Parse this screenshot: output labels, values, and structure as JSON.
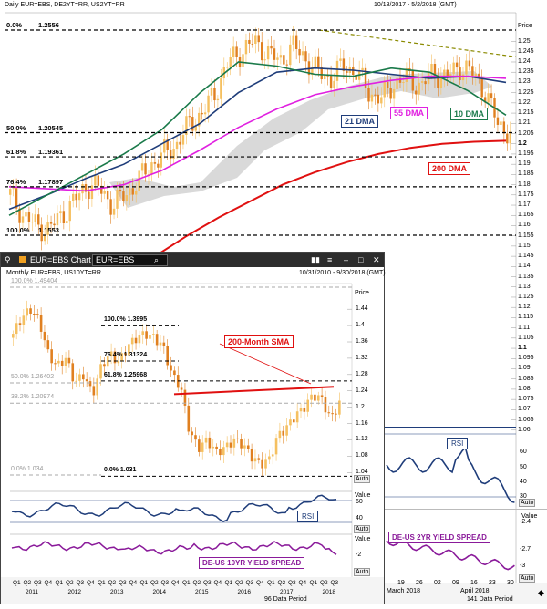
{
  "daily": {
    "header": "Daily EUR=EBS, DE2YT=RR, US2YT=RR",
    "range": "10/18/2017 - 5/2/2018 (GMT)",
    "price_label": "Price",
    "price_ticks": [
      "1.25",
      "1.245",
      "1.24",
      "1.235",
      "1.23",
      "1.225",
      "1.22",
      "1.215",
      "1.21",
      "1.205",
      "1.2",
      "1.195",
      "1.19",
      "1.185",
      "1.18",
      "1.175",
      "1.17",
      "1.165",
      "1.16",
      "1.155",
      "1.15",
      "1.145",
      "1.14",
      "1.135",
      "1.13",
      "1.125",
      "1.12",
      "1.115",
      "1.11",
      "1.105",
      "1.1",
      "1.095",
      "1.09",
      "1.085",
      "1.08",
      "1.075",
      "1.07",
      "1.065",
      "1.06"
    ],
    "fib_levels": [
      {
        "pct": "0.0%",
        "value": "1.2556"
      },
      {
        "pct": "50.0%",
        "value": "1.20545"
      },
      {
        "pct": "61.8%",
        "value": "1.19361"
      },
      {
        "pct": "76.4%",
        "value": "1.17897"
      },
      {
        "pct": "100.0%",
        "value": "1.1553"
      }
    ],
    "labels": {
      "dma21": "21 DMA",
      "dma55": "55 DMA",
      "dma10": "10 DMA",
      "dma200": "200 DMA"
    },
    "rsi_label": "RSI",
    "rsi_ticks": [
      "60",
      "50",
      "40",
      "30"
    ],
    "spread_label": "DE-US 2YR YIELD SPREAD",
    "spread_ticks": [
      "-2.4",
      "-2.7",
      "-3"
    ],
    "auto": "Auto",
    "value": "Value",
    "x_labels": [
      "19",
      "26",
      "02",
      "09",
      "16",
      "23",
      "30"
    ],
    "x_months": [
      "March 2018",
      "April 2018"
    ],
    "data_period": "141 Data Period"
  },
  "monthly_window": {
    "title": "EUR=EBS Chart",
    "ric": "EUR=EBS",
    "header": "Monthly EUR=EBS, US10YT=RR",
    "range": "10/31/2010 - 9/30/2018 (GMT)",
    "price_label": "Price",
    "price_ticks": [
      "1.44",
      "1.4",
      "1.36",
      "1.32",
      "1.28",
      "1.24",
      "1.2",
      "1.16",
      "1.12",
      "1.08",
      "1.04"
    ],
    "fib_levels": [
      {
        "pct": "100.0%",
        "value": "1.49404"
      },
      {
        "pct": "100.0%",
        "value": "1.3995"
      },
      {
        "pct": "76.4%",
        "value": "1.31324"
      },
      {
        "pct": "61.8%",
        "value": "1.25968"
      },
      {
        "pct": "50.0%",
        "value": "1.26402"
      },
      {
        "pct": "38.2%",
        "value": "1.20974"
      },
      {
        "pct": "0.0%",
        "value": "1.034"
      },
      {
        "pct": "0.0%",
        "value": "1.031"
      }
    ],
    "sma_label": "200-Month SMA",
    "rsi_label": "RSI",
    "rsi_ticks": [
      "60",
      "40"
    ],
    "spread_label": "DE-US 10YR YIELD SPREAD",
    "spread_ticks": [
      "-2"
    ],
    "value": "Value",
    "auto": "Auto",
    "quarters": [
      "Q1",
      "Q2",
      "Q3",
      "Q4"
    ],
    "years": [
      "2011",
      "2012",
      "2013",
      "2014",
      "2015",
      "2016",
      "2017",
      "2018"
    ],
    "last_q": [
      "Q1",
      "Q2",
      "Q3"
    ],
    "data_period": "96 Data Period"
  },
  "colors": {
    "dma21": "#1f3d7a",
    "dma55": "#e020e0",
    "dma10": "#1a7a4a",
    "dma200": "#e01010",
    "candle_up": "#f5c060",
    "candle_down": "#e08020",
    "trend": "#8a8a00",
    "rsi": "#1f3d7a",
    "spread": "#8a1a9a"
  },
  "chart_data": [
    {
      "type": "line",
      "title": "Daily EUR=EBS, DE2YT=RR, US2YT=RR",
      "ylim": [
        1.06,
        1.255
      ],
      "series": [
        {
          "name": "21 DMA",
          "values": [
            1.168,
            1.175,
            1.183,
            1.19,
            1.2,
            1.21,
            1.225,
            1.235,
            1.237,
            1.236,
            1.234,
            1.232,
            1.233,
            1.23
          ]
        },
        {
          "name": "55 DMA",
          "values": [
            1.179,
            1.178,
            1.177,
            1.18,
            1.187,
            1.197,
            1.208,
            1.217,
            1.224,
            1.228,
            1.231,
            1.233,
            1.233,
            1.232
          ]
        },
        {
          "name": "10 DMA",
          "values": [
            1.165,
            1.175,
            1.185,
            1.195,
            1.207,
            1.225,
            1.24,
            1.238,
            1.234,
            1.233,
            1.237,
            1.235,
            1.226,
            1.214
          ]
        },
        {
          "name": "200 DMA",
          "values": [
            1.128,
            1.136,
            1.145,
            1.155,
            1.164,
            1.172,
            1.18,
            1.186,
            1.191,
            1.195,
            1.198,
            1.2,
            1.201,
            1.2015
          ]
        }
      ]
    },
    {
      "type": "line",
      "title": "Monthly EUR=EBS, US10YT=RR",
      "ylim": [
        1.03,
        1.47
      ],
      "series": [
        {
          "name": "200-Month SMA",
          "values": [
            1.232,
            1.236,
            1.241,
            1.246,
            1.25
          ]
        }
      ]
    }
  ]
}
